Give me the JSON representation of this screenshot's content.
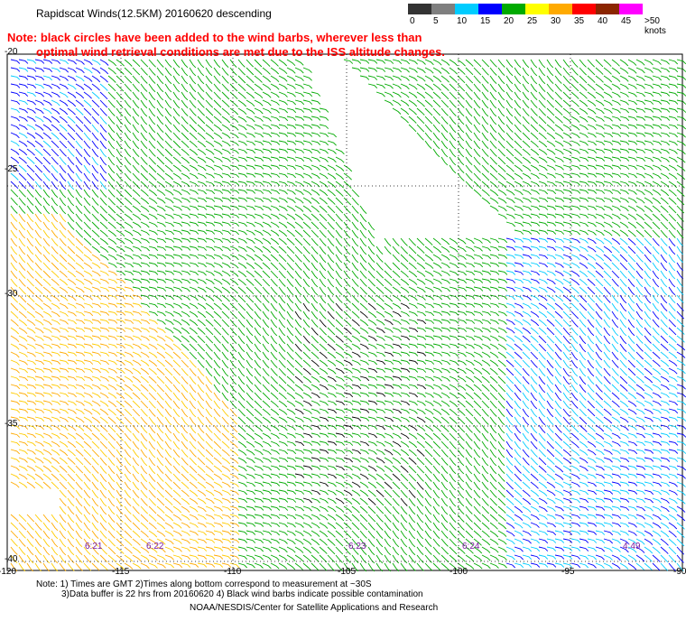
{
  "title": "Rapidscat Winds(12.5KM) 20160620 descending",
  "note_line1": "Note: black circles have been added to the wind barbs, wherever less than",
  "note_line2": "optimal wind retrieval conditions are met due to the ISS altitude changes.",
  "scale": {
    "labels": [
      "0",
      "5",
      "10",
      "15",
      "20",
      "25",
      "30",
      "35",
      "40",
      "45",
      ">50 knots"
    ],
    "colors": [
      "#333333",
      "#7f7f7f",
      "#00ccff",
      "#0000ff",
      "#00aa00",
      "#ffff00",
      "#ffaa00",
      "#ff0000",
      "#8b2500",
      "#ff00ff",
      "#5a2d8a"
    ]
  },
  "lat_labels": [
    "-20",
    "-25",
    "-30",
    "-35",
    "-40"
  ],
  "lon_labels": [
    "-120",
    "-115",
    "-110",
    "-105",
    "-100",
    "-95",
    "-90"
  ],
  "pass_times": [
    "6:21",
    "6:22",
    "6:23",
    "6:24",
    "4:49"
  ],
  "footer_line1": "Note: 1) Times are GMT 2)Times along bottom correspond to measurement at ~30S",
  "footer_line2": "3)Data buffer is 22 hrs from 20160620 4) Black wind barbs indicate possible contamination",
  "footer_line3": "NOAA/NESDIS/Center for Satellite Applications and Research"
}
